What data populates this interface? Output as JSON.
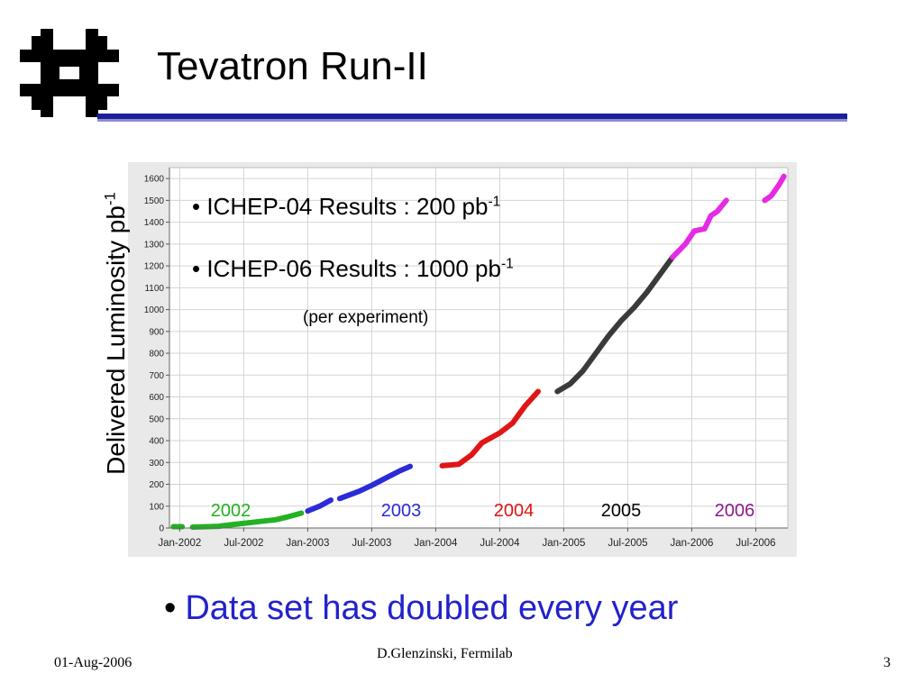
{
  "slide": {
    "title": "Tevatron Run-II",
    "bullet": "Data set has doubled every year",
    "footer_date": "01-Aug-2006",
    "footer_author": "D.Glenzinski, Fermilab",
    "page_number": "3",
    "logo": "fermilab-logo"
  },
  "colors": {
    "title_rule": "#1f1f9a",
    "bullet_text": "#2222cc",
    "run_2002": "#22b222",
    "run_2003": "#2b2bd8",
    "run_2004": "#e01515",
    "run_2005": "#3a3a3a",
    "run_2006": "#e52ae5"
  },
  "chart_data": {
    "type": "line",
    "ylabel_main": "Delivered Luminosity pb",
    "ylabel_sup": "-1",
    "ylim": [
      0,
      1650
    ],
    "yticks": [
      "0",
      "100",
      "200",
      "300",
      "400",
      "500",
      "600",
      "700",
      "800",
      "900",
      "1000",
      "1100",
      "1200",
      "1300",
      "1400",
      "1500",
      "1600"
    ],
    "xlim": [
      2001.92,
      2006.75
    ],
    "xticks": [
      {
        "label": "Jan-2002",
        "value": 2002.0
      },
      {
        "label": "Jul-2002",
        "value": 2002.5
      },
      {
        "label": "Jan-2003",
        "value": 2003.0
      },
      {
        "label": "Jul-2003",
        "value": 2003.5
      },
      {
        "label": "Jan-2004",
        "value": 2004.0
      },
      {
        "label": "Jul-2004",
        "value": 2004.5
      },
      {
        "label": "Jan-2005",
        "value": 2005.0
      },
      {
        "label": "Jul-2005",
        "value": 2005.5
      },
      {
        "label": "Jan-2006",
        "value": 2006.0
      },
      {
        "label": "Jul-2006",
        "value": 2006.5
      }
    ],
    "grid": true,
    "series": [
      {
        "name": "2002",
        "color": "#22b222",
        "segments": [
          [
            [
              2001.95,
              6
            ],
            [
              2002.02,
              6
            ]
          ],
          [
            [
              2002.1,
              4
            ],
            [
              2002.3,
              8
            ],
            [
              2002.45,
              18
            ],
            [
              2002.6,
              28
            ],
            [
              2002.75,
              38
            ],
            [
              2002.85,
              52
            ],
            [
              2002.95,
              68
            ]
          ]
        ]
      },
      {
        "name": "2003",
        "color": "#2b2bd8",
        "segments": [
          [
            [
              2003.0,
              78
            ],
            [
              2003.1,
              102
            ],
            [
              2003.18,
              128
            ]
          ],
          [
            [
              2003.25,
              135
            ],
            [
              2003.4,
              168
            ],
            [
              2003.5,
              195
            ],
            [
              2003.62,
              232
            ],
            [
              2003.72,
              262
            ],
            [
              2003.8,
              282
            ]
          ]
        ]
      },
      {
        "name": "2004",
        "color": "#e01515",
        "segments": [
          [
            [
              2004.05,
              285
            ],
            [
              2004.18,
              292
            ],
            [
              2004.28,
              335
            ],
            [
              2004.36,
              390
            ],
            [
              2004.5,
              435
            ],
            [
              2004.6,
              480
            ],
            [
              2004.7,
              560
            ],
            [
              2004.8,
              625
            ]
          ]
        ]
      },
      {
        "name": "2005",
        "color": "#3a3a3a",
        "segments": [
          [
            [
              2004.95,
              625
            ],
            [
              2005.05,
              660
            ],
            [
              2005.15,
              720
            ],
            [
              2005.25,
              800
            ],
            [
              2005.35,
              880
            ],
            [
              2005.45,
              950
            ],
            [
              2005.55,
              1010
            ],
            [
              2005.65,
              1080
            ],
            [
              2005.75,
              1160
            ],
            [
              2005.85,
              1240
            ]
          ]
        ]
      },
      {
        "name": "2006",
        "color": "#e52ae5",
        "segments": [
          [
            [
              2005.85,
              1240
            ],
            [
              2005.95,
              1300
            ],
            [
              2006.02,
              1360
            ],
            [
              2006.1,
              1370
            ],
            [
              2006.15,
              1430
            ],
            [
              2006.2,
              1450
            ],
            [
              2006.27,
              1500
            ]
          ],
          [
            [
              2006.57,
              1500
            ],
            [
              2006.62,
              1520
            ],
            [
              2006.68,
              1570
            ],
            [
              2006.72,
              1610
            ]
          ]
        ]
      }
    ],
    "year_labels": [
      {
        "text": "2002",
        "color": "#22b222"
      },
      {
        "text": "2003",
        "color": "#2b2bd8"
      },
      {
        "text": "2004",
        "color": "#e01515"
      },
      {
        "text": "2005",
        "color": "#000000"
      },
      {
        "text": "2006",
        "color": "#8b1a8b"
      }
    ],
    "annotations": {
      "ichep04_prefix": "• ICHEP-04 Results :   200 pb",
      "ichep04_sup": "-1",
      "ichep06_prefix": "• ICHEP-06 Results : 1000 pb",
      "ichep06_sup": "-1",
      "note": "(per experiment)"
    }
  }
}
